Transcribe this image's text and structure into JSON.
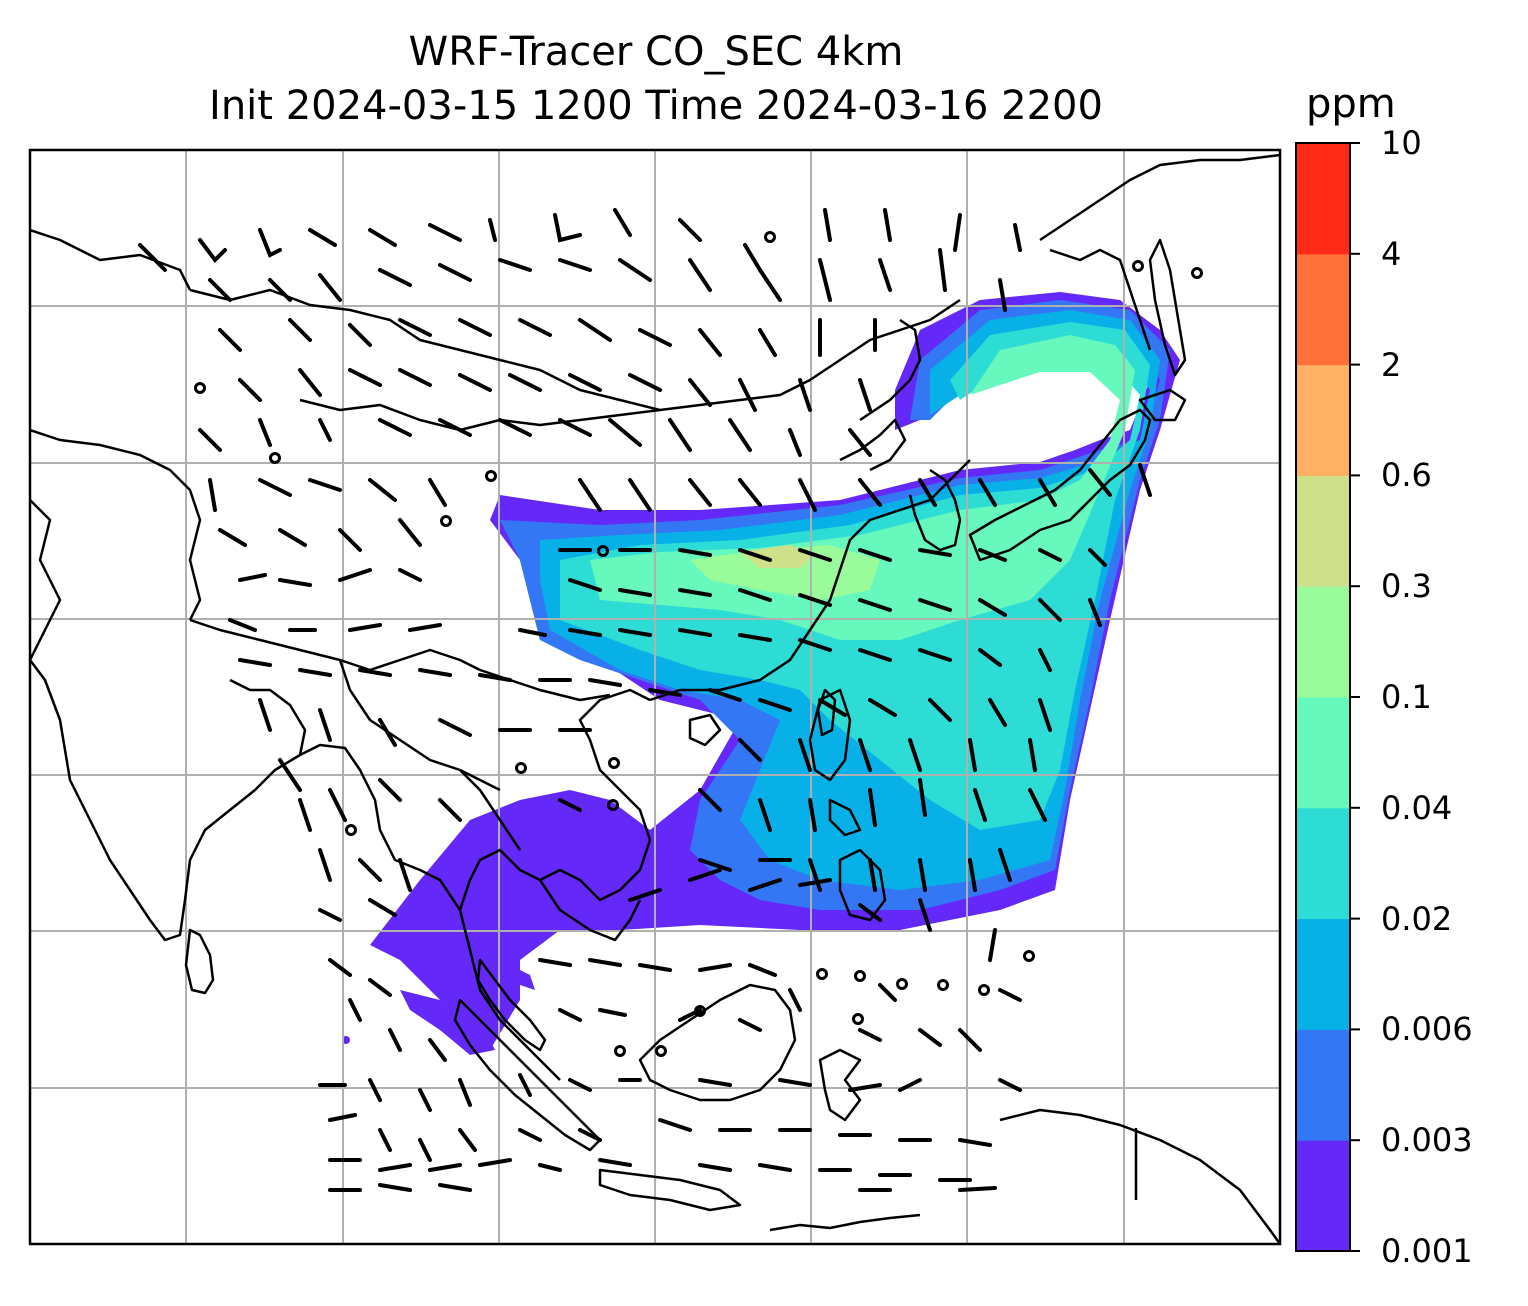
{
  "title": {
    "line1": "WRF-Tracer CO_SEC 4km",
    "line2": "Init 2024-03-15 1200 Time 2024-03-16 2200"
  },
  "colorbar": {
    "unit": "ppm",
    "ticks": [
      "0.001",
      "0.003",
      "0.006",
      "0.02",
      "0.04",
      "0.1",
      "0.3",
      "0.6",
      "2",
      "4",
      "10"
    ],
    "colors": [
      "#6428f8",
      "#3377f4",
      "#07b1e8",
      "#2edcd6",
      "#66f8bd",
      "#99fb9a",
      "#cfe08a",
      "#ffb062",
      "#ff7038",
      "#ff2a18"
    ]
  },
  "map": {
    "gridlines": true,
    "coastline_color": "#000000",
    "grid_color": "#b0b0b0",
    "wind_barbs": true,
    "calm_markers": true
  }
}
